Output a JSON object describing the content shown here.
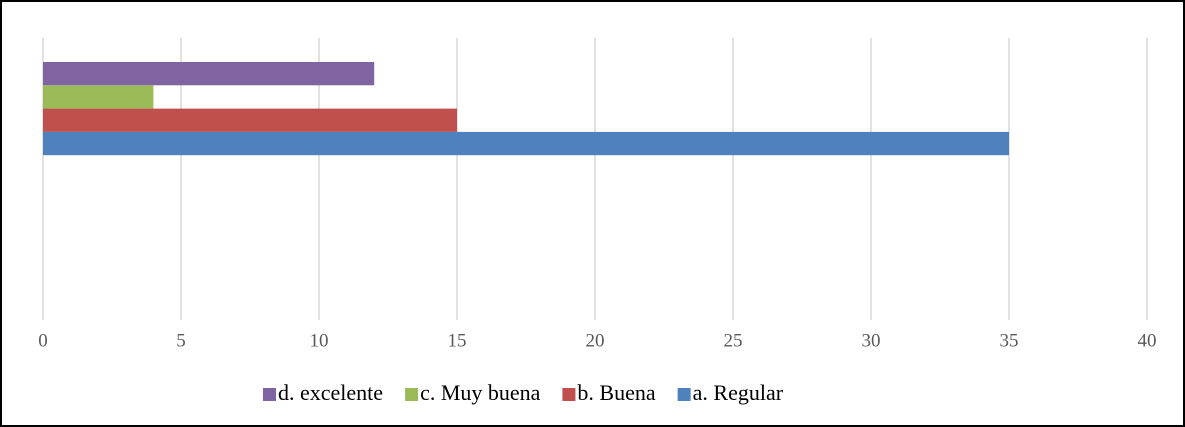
{
  "chart_data": {
    "type": "bar",
    "orientation": "horizontal",
    "categories": [
      null
    ],
    "series": [
      {
        "name": "d. excelente",
        "color": "#8064a2",
        "values": [
          12
        ]
      },
      {
        "name": "c. Muy buena",
        "color": "#9bbb59",
        "values": [
          4
        ]
      },
      {
        "name": "b. Buena",
        "color": "#c0504d",
        "values": [
          15
        ]
      },
      {
        "name": "a. Regular",
        "color": "#4f81bd",
        "values": [
          35
        ]
      }
    ],
    "xlim": [
      0,
      40
    ],
    "xticks": [
      0,
      5,
      10,
      15,
      20,
      25,
      30,
      35,
      40
    ],
    "grid": true,
    "legend": "bottom"
  }
}
